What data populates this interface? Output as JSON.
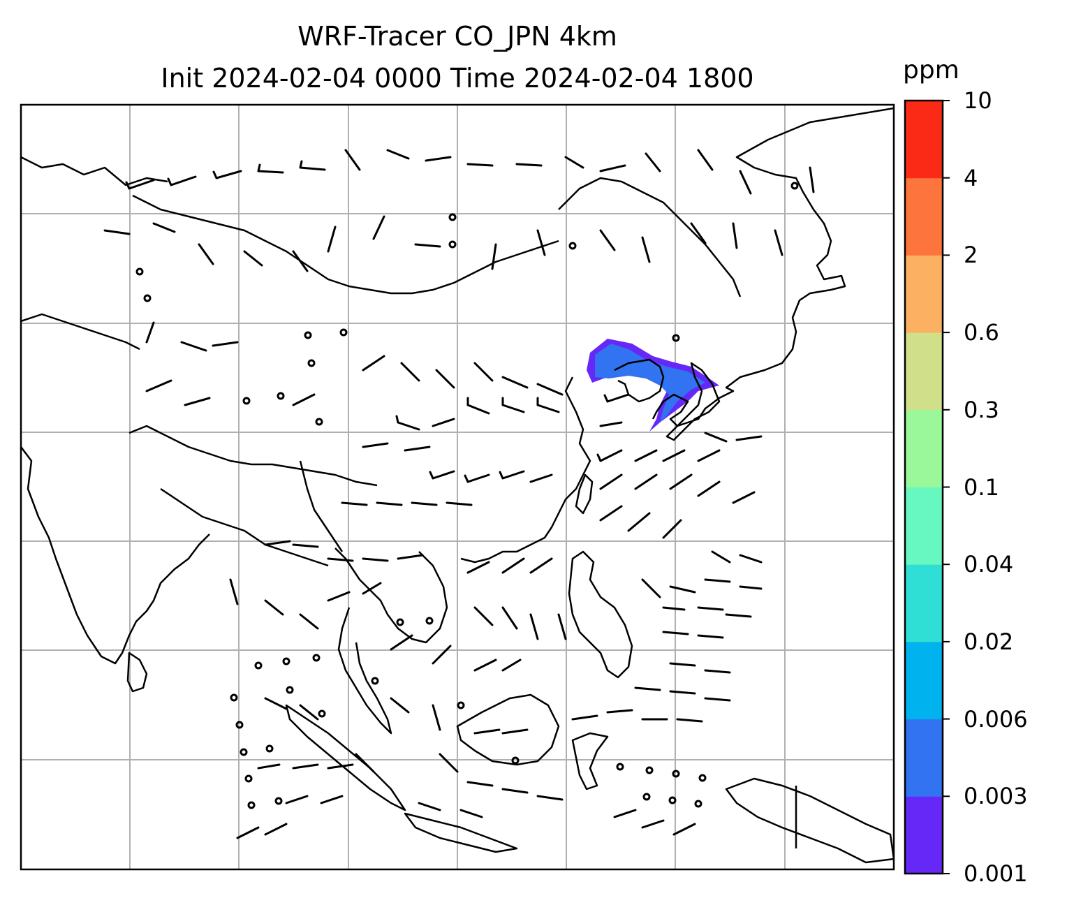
{
  "title_line1": "WRF-Tracer CO_JPN 4km",
  "title_line2": "Init 2024-02-04 0000 Time 2024-02-04 1800",
  "colorbar": {
    "unit": "ppm",
    "levels": [
      "0.001",
      "0.003",
      "0.006",
      "0.02",
      "0.04",
      "0.1",
      "0.3",
      "0.6",
      "2",
      "4",
      "10"
    ],
    "colors": [
      "#6528f7",
      "#3173f0",
      "#00b2ee",
      "#2fdfd6",
      "#66f8c0",
      "#9af89a",
      "#d0e08a",
      "#fbb161",
      "#fd753c",
      "#fb2a16"
    ]
  },
  "map": {
    "background": "#ffffff",
    "coastline_color": "#000000",
    "gridline_color": "#b0b0b0",
    "tracer_plume_colors": [
      "#6528f7",
      "#3173f0"
    ],
    "wind_barbs": "on",
    "gridlines": "on"
  }
}
